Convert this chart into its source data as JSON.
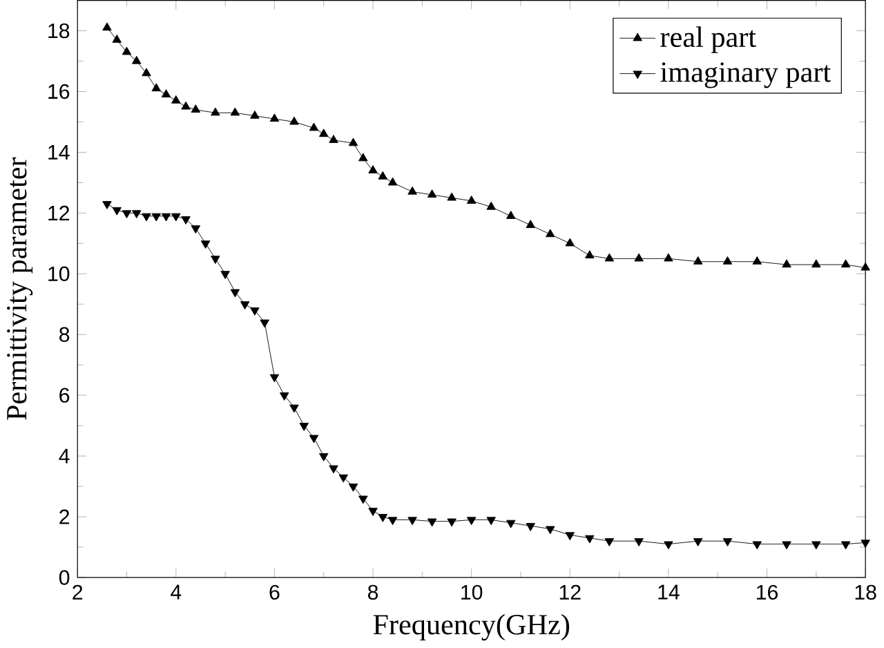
{
  "chart_data": {
    "type": "line",
    "xlabel": "Frequency(GHz)",
    "ylabel": "Permittivity parameter",
    "xlim": [
      2,
      18
    ],
    "ylim": [
      0,
      19
    ],
    "xticks": [
      2,
      4,
      6,
      8,
      10,
      12,
      14,
      16,
      18
    ],
    "yticks": [
      0,
      2,
      4,
      6,
      8,
      10,
      12,
      14,
      16,
      18
    ],
    "legend": "top right",
    "grid": false,
    "series": [
      {
        "name": "real part",
        "color": "#000000",
        "marker": "triangle",
        "x": [
          2.6,
          2.8,
          3.0,
          3.2,
          3.4,
          3.6,
          3.8,
          4.0,
          4.2,
          4.4,
          4.8,
          5.2,
          5.6,
          6.0,
          6.4,
          6.8,
          7.0,
          7.2,
          7.6,
          7.8,
          8.0,
          8.2,
          8.4,
          8.8,
          9.2,
          9.6,
          10.0,
          10.4,
          10.8,
          11.2,
          11.6,
          12.0,
          12.4,
          12.8,
          13.4,
          14.0,
          14.6,
          15.2,
          15.8,
          16.4,
          17.0,
          17.6,
          18.0
        ],
        "values": [
          18.1,
          17.7,
          17.3,
          17.0,
          16.6,
          16.1,
          15.9,
          15.7,
          15.5,
          15.4,
          15.3,
          15.3,
          15.2,
          15.1,
          15.0,
          14.8,
          14.6,
          14.4,
          14.3,
          13.8,
          13.4,
          13.2,
          13.0,
          12.7,
          12.6,
          12.5,
          12.4,
          12.2,
          11.9,
          11.6,
          11.3,
          11.0,
          10.6,
          10.5,
          10.5,
          10.5,
          10.4,
          10.4,
          10.4,
          10.3,
          10.3,
          10.3,
          10.2
        ]
      },
      {
        "name": "imaginary part",
        "color": "#000000",
        "marker": "triangle-down",
        "x": [
          2.6,
          2.8,
          3.0,
          3.2,
          3.4,
          3.6,
          3.8,
          4.0,
          4.2,
          4.4,
          4.6,
          4.8,
          5.0,
          5.2,
          5.4,
          5.6,
          5.8,
          6.0,
          6.2,
          6.4,
          6.6,
          6.8,
          7.0,
          7.2,
          7.4,
          7.6,
          7.8,
          8.0,
          8.2,
          8.4,
          8.8,
          9.2,
          9.6,
          10.0,
          10.4,
          10.8,
          11.2,
          11.6,
          12.0,
          12.4,
          12.8,
          13.4,
          14.0,
          14.6,
          15.2,
          15.8,
          16.4,
          17.0,
          17.6,
          18.0
        ],
        "values": [
          12.3,
          12.1,
          12.0,
          12.0,
          11.9,
          11.9,
          11.9,
          11.9,
          11.8,
          11.5,
          11.0,
          10.5,
          10.0,
          9.4,
          9.0,
          8.8,
          8.4,
          6.6,
          6.0,
          5.6,
          5.0,
          4.6,
          4.0,
          3.6,
          3.3,
          3.0,
          2.6,
          2.2,
          2.0,
          1.9,
          1.9,
          1.85,
          1.85,
          1.9,
          1.9,
          1.8,
          1.7,
          1.6,
          1.4,
          1.3,
          1.2,
          1.2,
          1.1,
          1.2,
          1.2,
          1.1,
          1.1,
          1.1,
          1.1,
          1.15
        ]
      }
    ]
  }
}
